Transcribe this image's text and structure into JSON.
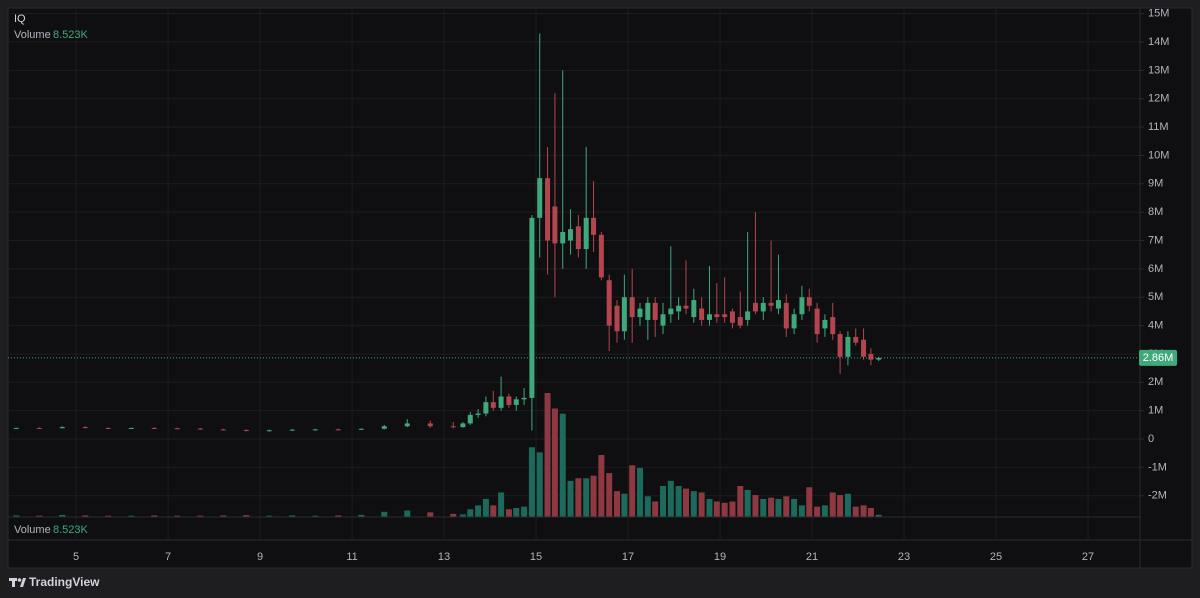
{
  "chart_data": {
    "type": "candlestick",
    "title": "IQ",
    "legend_label": "Volume",
    "legend_value": "8.523K",
    "x": [
      3.7,
      4.2,
      4.7,
      5.2,
      5.7,
      6.2,
      6.7,
      7.2,
      7.7,
      8.2,
      8.7,
      9.2,
      9.7,
      10.2,
      10.7,
      11.2,
      11.7,
      12.2,
      12.7,
      13.2,
      13.41,
      13.57,
      13.74,
      13.91,
      14.07,
      14.24,
      14.41,
      14.57,
      14.74,
      14.91,
      15.08,
      15.25,
      15.41,
      15.58,
      15.75,
      15.92,
      16.09,
      16.25,
      16.42,
      16.59,
      16.76,
      16.92,
      17.09,
      17.26,
      17.43,
      17.59,
      17.76,
      17.93,
      18.1,
      18.26,
      18.43,
      18.6,
      18.77,
      18.93,
      19.1,
      19.27,
      19.44,
      19.6,
      19.77,
      19.94,
      20.11,
      20.27,
      20.44,
      20.61,
      20.78,
      20.94,
      21.11,
      21.28,
      21.45,
      21.61,
      21.78,
      21.95,
      22.12,
      22.28,
      22.45
    ],
    "open": [
      380000,
      390000,
      380000,
      420000,
      390000,
      380000,
      390000,
      380000,
      370000,
      340000,
      320000,
      290000,
      310000,
      330000,
      340000,
      330000,
      360000,
      450000,
      550000,
      450000,
      420000,
      550000,
      850000,
      900000,
      1300000,
      1100000,
      1500000,
      1200000,
      1400000,
      1450000,
      7800000,
      9200000,
      8200000,
      6900000,
      7000000,
      7500000,
      6700000,
      7800000,
      7200000,
      5600000,
      4700000,
      3800000,
      5000000,
      4300000,
      4200000,
      4800000,
      4000000,
      4400000,
      4500000,
      4700000,
      4300000,
      4600000,
      4200000,
      4400000,
      4400000,
      4500000,
      4300000,
      4200000,
      4800000,
      4500000,
      4800000,
      4600000,
      4800000,
      3900000,
      4400000,
      5000000,
      4600000,
      3900000,
      4300000,
      3700000,
      2900000,
      3600000,
      3500000,
      3000000,
      2800000
    ],
    "high": [
      400000,
      410000,
      450000,
      460000,
      410000,
      400000,
      420000,
      400000,
      390000,
      360000,
      340000,
      330000,
      350000,
      360000,
      370000,
      380000,
      500000,
      700000,
      650000,
      600000,
      600000,
      950000,
      1050000,
      1500000,
      1700000,
      2200000,
      1600000,
      1500000,
      1800000,
      7900000,
      14300000,
      10300000,
      12200000,
      13000000,
      8100000,
      7900000,
      10300000,
      9100000,
      7300000,
      5800000,
      4900000,
      5800000,
      6000000,
      4800000,
      5000000,
      5000000,
      4800000,
      6800000,
      5000000,
      6300000,
      5300000,
      5000000,
      6100000,
      5500000,
      5700000,
      4600000,
      5200000,
      7300000,
      8000000,
      5000000,
      7000000,
      6500000,
      5100000,
      4600000,
      5400000,
      5300000,
      4800000,
      4400000,
      4800000,
      3800000,
      3800000,
      3900000,
      3900000,
      3200000,
      2900000
    ],
    "low": [
      370000,
      370000,
      370000,
      380000,
      360000,
      360000,
      370000,
      350000,
      330000,
      300000,
      270000,
      260000,
      290000,
      300000,
      310000,
      320000,
      340000,
      420000,
      400000,
      380000,
      400000,
      500000,
      750000,
      800000,
      1000000,
      1000000,
      1100000,
      1000000,
      1200000,
      300000,
      6400000,
      5800000,
      5000000,
      6000000,
      6500000,
      6400000,
      6000000,
      6600000,
      5600000,
      3100000,
      3400000,
      3500000,
      3400000,
      4000000,
      3500000,
      3600000,
      3700000,
      4100000,
      4200000,
      4400000,
      4100000,
      4000000,
      4000000,
      4100000,
      4100000,
      3900000,
      3900000,
      4000000,
      4400000,
      4200000,
      4500000,
      4400000,
      3600000,
      3700000,
      4200000,
      4500000,
      3400000,
      3600000,
      3500000,
      2300000,
      2600000,
      3300000,
      2800000,
      2600000,
      2750000
    ],
    "close": [
      390000,
      380000,
      420000,
      390000,
      380000,
      390000,
      380000,
      370000,
      340000,
      320000,
      290000,
      310000,
      330000,
      340000,
      330000,
      360000,
      450000,
      550000,
      450000,
      420000,
      550000,
      850000,
      900000,
      1300000,
      1100000,
      1500000,
      1200000,
      1400000,
      1450000,
      7800000,
      9200000,
      7000000,
      6900000,
      7300000,
      7400000,
      6700000,
      7800000,
      7200000,
      5700000,
      4000000,
      3800000,
      5000000,
      4300000,
      4600000,
      4800000,
      4200000,
      4400000,
      4600000,
      4700000,
      4600000,
      4900000,
      4200000,
      4400000,
      4300000,
      4300000,
      4100000,
      4000000,
      4500000,
      4500000,
      4800000,
      4700000,
      4900000,
      3900000,
      4400000,
      5000000,
      4700000,
      3700000,
      4200000,
      3700000,
      2900000,
      3600000,
      3400000,
      2900000,
      2800000,
      2860000
    ],
    "volume": [
      6000,
      5000,
      8000,
      6000,
      5000,
      5000,
      6000,
      5000,
      5000,
      6000,
      7000,
      5000,
      6000,
      5000,
      6000,
      8000,
      20000,
      25000,
      18000,
      12000,
      10000,
      30000,
      45000,
      70000,
      45000,
      95000,
      30000,
      35000,
      40000,
      270000,
      250000,
      480000,
      420000,
      400000,
      140000,
      150000,
      150000,
      160000,
      240000,
      170000,
      100000,
      90000,
      200000,
      190000,
      80000,
      60000,
      120000,
      140000,
      120000,
      110000,
      100000,
      95000,
      70000,
      60000,
      55000,
      60000,
      120000,
      105000,
      85000,
      70000,
      75000,
      70000,
      80000,
      70000,
      45000,
      115000,
      40000,
      45000,
      95000,
      85000,
      90000,
      40000,
      45000,
      35000,
      8523
    ],
    "up_color": "#3fa97c",
    "down_color": "#b3454f",
    "volume_up_color": "#1b6a5b",
    "volume_down_color": "#8e3942",
    "xlim": [
      3.52,
      28.13
    ],
    "xticks": [
      5,
      7,
      9,
      11,
      13,
      15,
      17,
      19,
      21,
      23,
      25,
      27
    ],
    "ylim": [
      -2750000,
      15200000
    ],
    "yticks": [
      {
        "value": -2000000,
        "label": "-2M"
      },
      {
        "value": -1000000,
        "label": "-1M"
      },
      0,
      {
        "value": 1000000,
        "label": "1M"
      },
      {
        "value": 2000000,
        "label": "2M"
      },
      {
        "value": 3000000,
        "label": "3M"
      },
      {
        "value": 4000000,
        "label": "4M"
      },
      {
        "value": 5000000,
        "label": "5M"
      },
      {
        "value": 6000000,
        "label": "6M"
      },
      {
        "value": 7000000,
        "label": "7M"
      },
      {
        "value": 8000000,
        "label": "8M"
      },
      {
        "value": 9000000,
        "label": "9M"
      },
      {
        "value": 10000000,
        "label": "10M"
      },
      {
        "value": 11000000,
        "label": "11M"
      },
      {
        "value": 12000000,
        "label": "12M"
      },
      {
        "value": 13000000,
        "label": "13M"
      },
      {
        "value": 14000000,
        "label": "14M"
      },
      {
        "value": 15000000,
        "label": "15M"
      }
    ],
    "volume_ylim": [
      0,
      480000
    ],
    "last_price": {
      "value": 2860000,
      "label": "2.86M"
    },
    "grid": true
  },
  "footer": {
    "brand": "TradingView"
  }
}
